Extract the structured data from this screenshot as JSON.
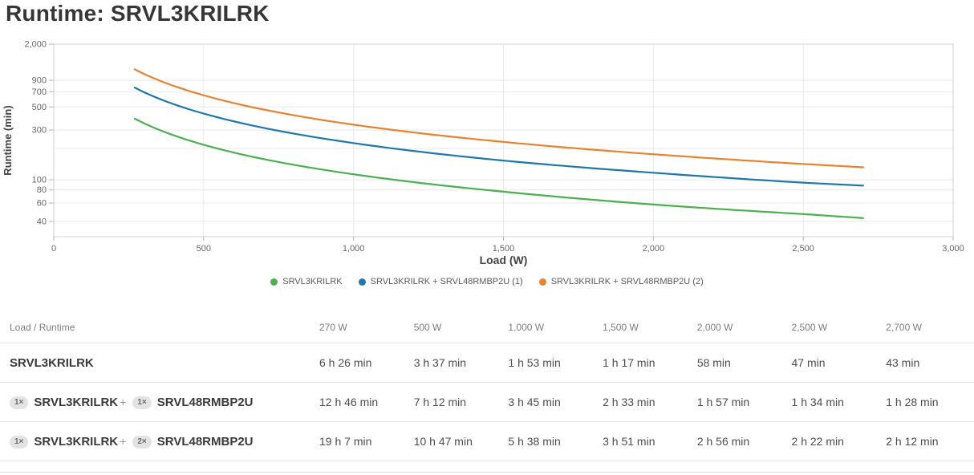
{
  "title": "Runtime: SRVL3KRILRK",
  "chart_data": {
    "type": "line",
    "title": "Runtime: SRVL3KRILRK",
    "xlabel": "Load (W)",
    "ylabel": "Runtime (min)",
    "x_scale": "linear",
    "y_scale": "log",
    "xlim": [
      0,
      3000
    ],
    "ylim": [
      28.5,
      2000
    ],
    "x_ticks": [
      0,
      500,
      1000,
      1500,
      2000,
      2500,
      3000
    ],
    "y_tick_labels": [
      2000,
      900,
      700,
      500,
      300,
      100,
      80,
      60,
      40
    ],
    "y_gridlines": [
      900,
      700,
      500,
      300,
      200,
      100,
      80,
      60,
      40
    ],
    "grid": true,
    "legend_position": "bottom",
    "x": [
      270,
      500,
      1000,
      1500,
      2000,
      2500,
      2700
    ],
    "series": [
      {
        "name": "SRVL3KRILRK",
        "color": "#4cb053",
        "runtime_min": [
          386,
          217,
          113,
          77,
          58,
          47,
          43
        ]
      },
      {
        "name": "SRVL3KRILRK + SRVL48RMBP2U (1)",
        "color": "#1f77ab",
        "runtime_min": [
          766,
          432,
          225,
          153,
          117,
          94,
          88
        ]
      },
      {
        "name": "SRVL3KRILRK + SRVL48RMBP2U (2)",
        "color": "#e8822f",
        "runtime_min": [
          1147,
          647,
          338,
          231,
          176,
          142,
          132
        ]
      }
    ],
    "colors": {
      "gridline": "#e8e8e8",
      "plot_border": "#d2d2d2",
      "tick": "#b3b3b3",
      "tick_label": "#666666",
      "axis_title": "#444444"
    }
  },
  "table": {
    "header": [
      "Load / Runtime",
      "270 W",
      "500 W",
      "1,000 W",
      "1,500 W",
      "2,000 W",
      "2,500 W",
      "2,700 W"
    ],
    "rows": [
      {
        "parts": [
          {
            "qty": "",
            "name": "SRVL3KRILRK"
          }
        ],
        "values": [
          "6 h 26 min",
          "3 h 37 min",
          "1 h 53 min",
          "1 h 17 min",
          "58 min",
          "47 min",
          "43 min"
        ]
      },
      {
        "parts": [
          {
            "qty": "1×",
            "name": "SRVL3KRILRK"
          },
          {
            "qty": "1×",
            "name": "SRVL48RMBP2U"
          }
        ],
        "values": [
          "12 h 46 min",
          "7 h 12 min",
          "3 h 45 min",
          "2 h 33 min",
          "1 h 57 min",
          "1 h 34 min",
          "1 h 28 min"
        ]
      },
      {
        "parts": [
          {
            "qty": "1×",
            "name": "SRVL3KRILRK"
          },
          {
            "qty": "2×",
            "name": "SRVL48RMBP2U"
          }
        ],
        "values": [
          "19 h 7 min",
          "10 h 47 min",
          "5 h 38 min",
          "3 h 51 min",
          "2 h 56 min",
          "2 h 22 min",
          "2 h 12 min"
        ]
      }
    ]
  }
}
